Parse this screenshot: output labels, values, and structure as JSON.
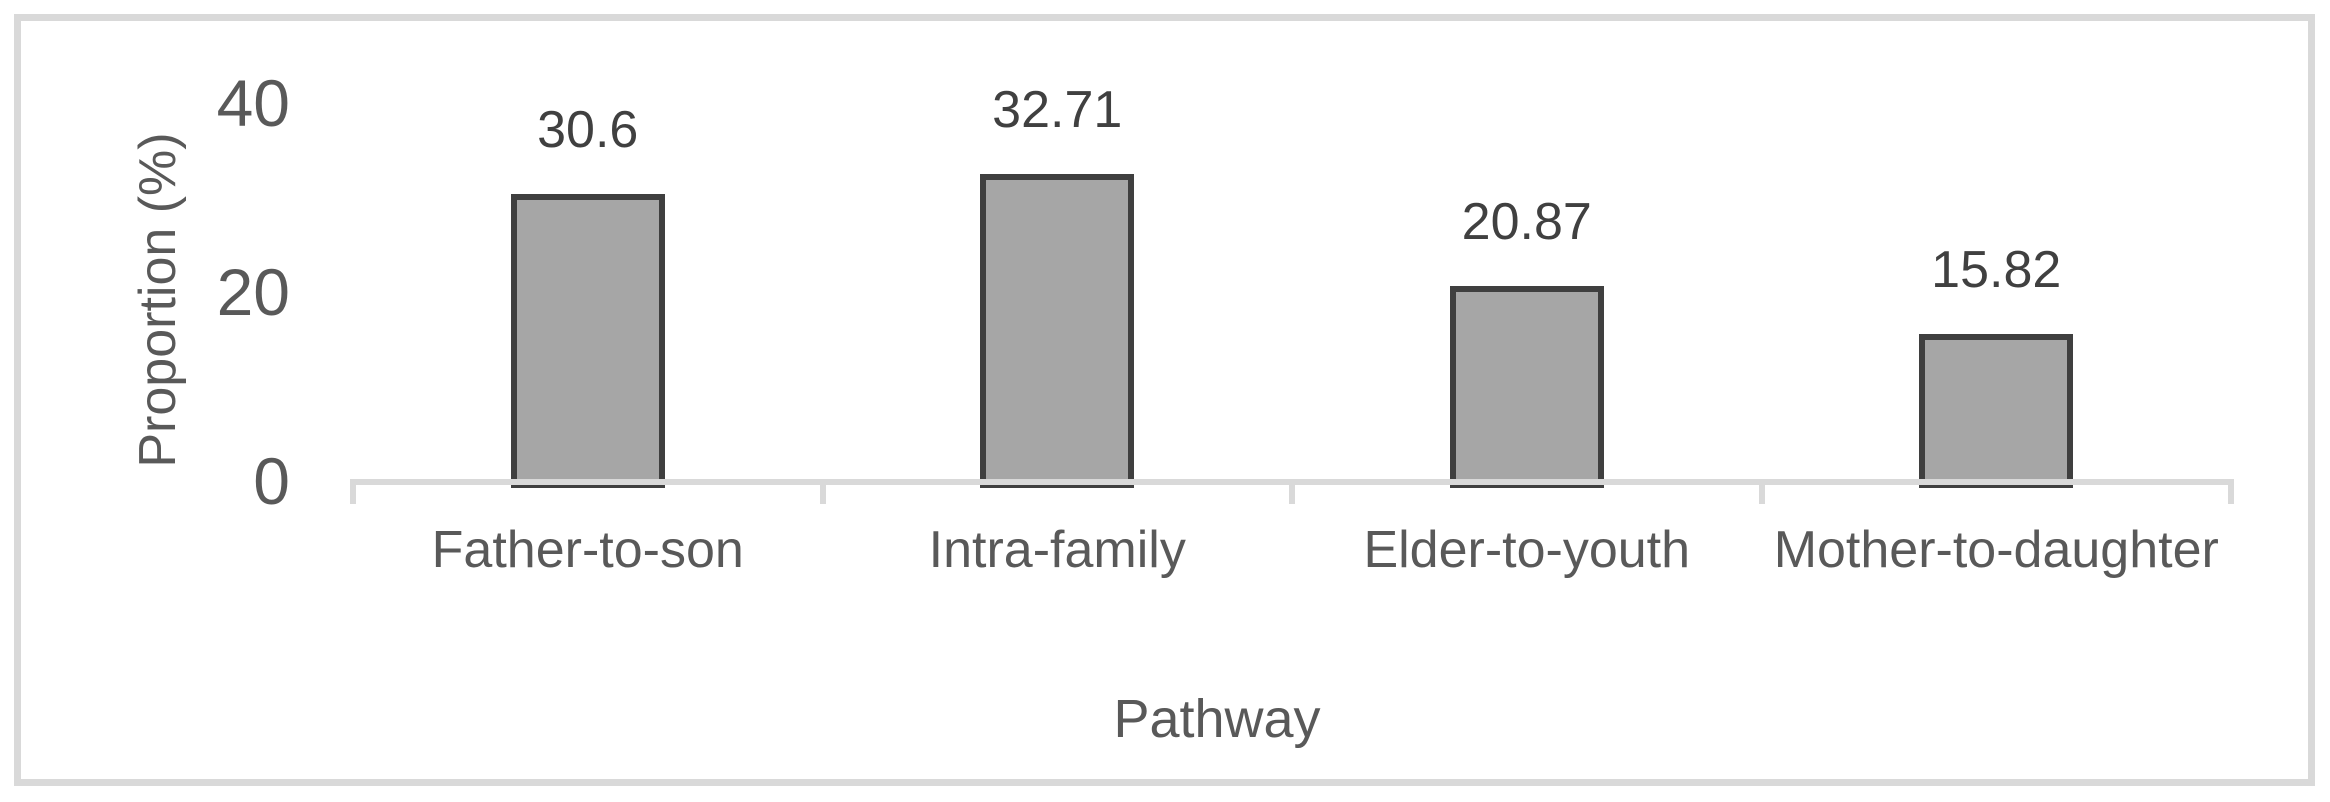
{
  "chart_data": {
    "type": "bar",
    "title": "",
    "categories": [
      "Father-to-son",
      "Intra-family",
      "Elder-to-youth",
      "Mother-to-daughter"
    ],
    "values": [
      30.6,
      32.71,
      20.87,
      15.82
    ],
    "data_labels": [
      "30.6",
      "32.71",
      "20.87",
      "15.82"
    ],
    "xlabel": "Pathway",
    "ylabel": "Proportion (%)",
    "ylim": [
      0,
      40
    ],
    "yticks": [
      0,
      20,
      40
    ],
    "grid": false,
    "legend_position": "none",
    "colors": {
      "bar_fill": "#a6a6a6",
      "bar_border": "#3f3f3f",
      "axis_gray": "#d9d9d9",
      "axis_text": "#595959",
      "data_label_text": "#404040",
      "background": "#ffffff"
    }
  }
}
